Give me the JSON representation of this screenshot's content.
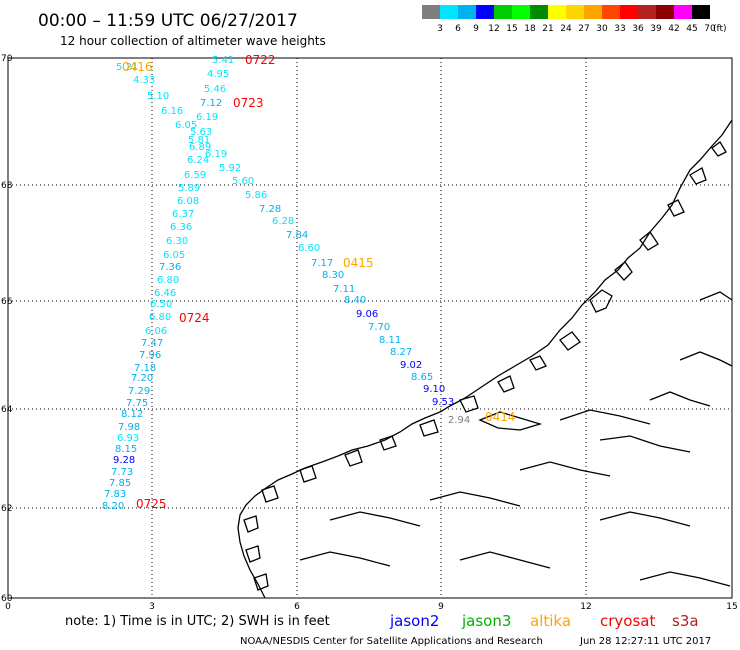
{
  "header": {
    "title": "00:00 – 11:59 UTC 06/27/2017",
    "subtitle": "12 hour collection of altimeter wave heights"
  },
  "colorbar": {
    "unit_label": "(ft)",
    "ticks": [
      "3",
      "6",
      "9",
      "12",
      "15",
      "18",
      "21",
      "24",
      "27",
      "30",
      "33",
      "36",
      "39",
      "42",
      "45",
      "70"
    ],
    "colors": [
      "#7f7f7f",
      "#00e5ff",
      "#00b2ee",
      "#0000ff",
      "#00cd00",
      "#00ff00",
      "#008b00",
      "#ffff00",
      "#ffd700",
      "#ffa500",
      "#ff4500",
      "#ff0000",
      "#b22222",
      "#8b0000",
      "#ff00ff",
      "#000000"
    ]
  },
  "axes": {
    "lon_ticks": [
      "0",
      "3",
      "6",
      "9",
      "12",
      "15"
    ],
    "lat_ticks": [
      "70",
      "68",
      "66",
      "64",
      "62",
      "60"
    ]
  },
  "passes": [
    {
      "label": "0722",
      "color": "#ff0000"
    },
    {
      "label": "0416",
      "color": "#ffa500"
    },
    {
      "label": "0723",
      "color": "#ff0000"
    },
    {
      "label": "0415",
      "color": "#ffa500"
    },
    {
      "label": "0724",
      "color": "#ff0000"
    },
    {
      "label": "0725",
      "color": "#ff0000"
    },
    {
      "label": "0414",
      "color": "#ffa500"
    }
  ],
  "swh_labels": [
    {
      "v": "5.21",
      "c": "#00e5ff"
    },
    {
      "v": "5.41",
      "c": "#00e5ff"
    },
    {
      "v": "4.33",
      "c": "#00e5ff"
    },
    {
      "v": "4.95",
      "c": "#00e5ff"
    },
    {
      "v": "5.10",
      "c": "#00e5ff"
    },
    {
      "v": "5.46",
      "c": "#00e5ff"
    },
    {
      "v": "6.16",
      "c": "#00e5ff"
    },
    {
      "v": "7.12",
      "c": "#00b2ee"
    },
    {
      "v": "6.05",
      "c": "#00e5ff"
    },
    {
      "v": "6.19",
      "c": "#00e5ff"
    },
    {
      "v": "5.63",
      "c": "#00e5ff"
    },
    {
      "v": "5.81",
      "c": "#00e5ff"
    },
    {
      "v": "6.89",
      "c": "#00e5ff"
    },
    {
      "v": "6.19",
      "c": "#00e5ff"
    },
    {
      "v": "6.24",
      "c": "#00e5ff"
    },
    {
      "v": "5.92",
      "c": "#00e5ff"
    },
    {
      "v": "6.59",
      "c": "#00e5ff"
    },
    {
      "v": "5.60",
      "c": "#00e5ff"
    },
    {
      "v": "5.89",
      "c": "#00e5ff"
    },
    {
      "v": "5.86",
      "c": "#00e5ff"
    },
    {
      "v": "6.08",
      "c": "#00e5ff"
    },
    {
      "v": "7.28",
      "c": "#00b2ee"
    },
    {
      "v": "6.37",
      "c": "#00e5ff"
    },
    {
      "v": "6.28",
      "c": "#00e5ff"
    },
    {
      "v": "6.36",
      "c": "#00e5ff"
    },
    {
      "v": "7.84",
      "c": "#00b2ee"
    },
    {
      "v": "6.30",
      "c": "#00e5ff"
    },
    {
      "v": "6.60",
      "c": "#00e5ff"
    },
    {
      "v": "6.05",
      "c": "#00e5ff"
    },
    {
      "v": "7.17",
      "c": "#00b2ee"
    },
    {
      "v": "7.36",
      "c": "#00b2ee"
    },
    {
      "v": "8.30",
      "c": "#00b2ee"
    },
    {
      "v": "6.80",
      "c": "#00e5ff"
    },
    {
      "v": "7.11",
      "c": "#00b2ee"
    },
    {
      "v": "6.46",
      "c": "#00e5ff"
    },
    {
      "v": "8.40",
      "c": "#00b2ee"
    },
    {
      "v": "6.50",
      "c": "#00e5ff"
    },
    {
      "v": "9.06",
      "c": "#0000ff"
    },
    {
      "v": "6.80",
      "c": "#00e5ff"
    },
    {
      "v": "7.70",
      "c": "#00b2ee"
    },
    {
      "v": "6.06",
      "c": "#00e5ff"
    },
    {
      "v": "8.11",
      "c": "#00b2ee"
    },
    {
      "v": "7.47",
      "c": "#00b2ee"
    },
    {
      "v": "8.27",
      "c": "#00b2ee"
    },
    {
      "v": "7.96",
      "c": "#00b2ee"
    },
    {
      "v": "9.02",
      "c": "#0000ff"
    },
    {
      "v": "7.18",
      "c": "#00b2ee"
    },
    {
      "v": "8.65",
      "c": "#00b2ee"
    },
    {
      "v": "7.20",
      "c": "#00b2ee"
    },
    {
      "v": "9.10",
      "c": "#0000ff"
    },
    {
      "v": "7.29",
      "c": "#00b2ee"
    },
    {
      "v": "9.53",
      "c": "#0000ff"
    },
    {
      "v": "7.75",
      "c": "#00b2ee"
    },
    {
      "v": "8.12",
      "c": "#00b2ee"
    },
    {
      "v": "7.98",
      "c": "#00b2ee"
    },
    {
      "v": "6.93",
      "c": "#00e5ff"
    },
    {
      "v": "8.15",
      "c": "#00b2ee"
    },
    {
      "v": "9.28",
      "c": "#0000ff"
    },
    {
      "v": "7.73",
      "c": "#00b2ee"
    },
    {
      "v": "7.85",
      "c": "#00b2ee"
    },
    {
      "v": "7.83",
      "c": "#00b2ee"
    },
    {
      "v": "8.20",
      "c": "#00b2ee"
    },
    {
      "v": "2.94",
      "c": "#7f7f7f"
    }
  ],
  "footer": {
    "note": "note: 1) Time is in UTC; 2) SWH is in feet",
    "legend": [
      {
        "name": "jason2",
        "color": "#0000ff"
      },
      {
        "name": "jason3",
        "color": "#00b000"
      },
      {
        "name": "altika",
        "color": "#ffa500"
      },
      {
        "name": "cryosat",
        "color": "#ff0000"
      },
      {
        "name": "s3a",
        "color": "#b22222"
      }
    ],
    "credit": "NOAA/NESDIS Center for Satellite Applications and Research",
    "timestamp": "Jun 28 12:27:11 UTC 2017"
  }
}
